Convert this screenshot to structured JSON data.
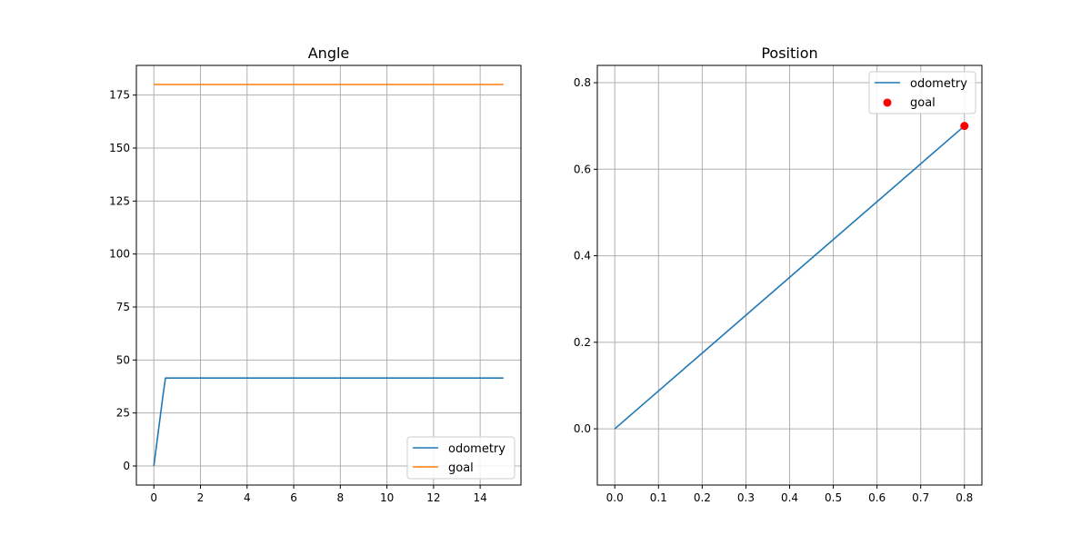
{
  "chart_data": [
    {
      "type": "line",
      "title": "Angle",
      "xlabel": "",
      "ylabel": "",
      "xlim": [
        -0.75,
        15.75
      ],
      "ylim": [
        -9.0,
        189.0
      ],
      "xticks": [
        0,
        2,
        4,
        6,
        8,
        10,
        12,
        14
      ],
      "yticks": [
        0,
        25,
        50,
        75,
        100,
        125,
        150,
        175
      ],
      "grid": true,
      "legend": "lower right",
      "series": [
        {
          "name": "odometry",
          "color": "#1f77b4",
          "x": [
            0,
            0.1,
            0.2,
            0.3,
            0.4,
            0.5,
            1,
            2,
            4,
            6,
            8,
            10,
            12,
            14,
            15
          ],
          "y": [
            0,
            8.5,
            17,
            25.5,
            34,
            41.5,
            41.5,
            41.5,
            41.5,
            41.5,
            41.5,
            41.5,
            41.5,
            41.5,
            41.5
          ]
        },
        {
          "name": "goal",
          "color": "#ff7f0e",
          "x": [
            0,
            15
          ],
          "y": [
            180,
            180
          ]
        }
      ]
    },
    {
      "type": "line",
      "title": "Position",
      "xlabel": "",
      "ylabel": "",
      "xlim": [
        -0.04,
        0.84
      ],
      "ylim": [
        -0.13,
        0.84
      ],
      "xticks": [
        0.0,
        0.1,
        0.2,
        0.3,
        0.4,
        0.5,
        0.6,
        0.7,
        0.8
      ],
      "yticks": [
        0.0,
        0.2,
        0.4,
        0.6,
        0.8
      ],
      "grid": true,
      "legend": "upper right",
      "series": [
        {
          "name": "odometry",
          "kind": "line",
          "color": "#1f77b4",
          "x": [
            0.0,
            0.8
          ],
          "y": [
            0.0,
            0.7
          ]
        },
        {
          "name": "goal",
          "kind": "scatter",
          "color": "#ff0000",
          "x": [
            0.8
          ],
          "y": [
            0.7
          ]
        }
      ]
    }
  ]
}
